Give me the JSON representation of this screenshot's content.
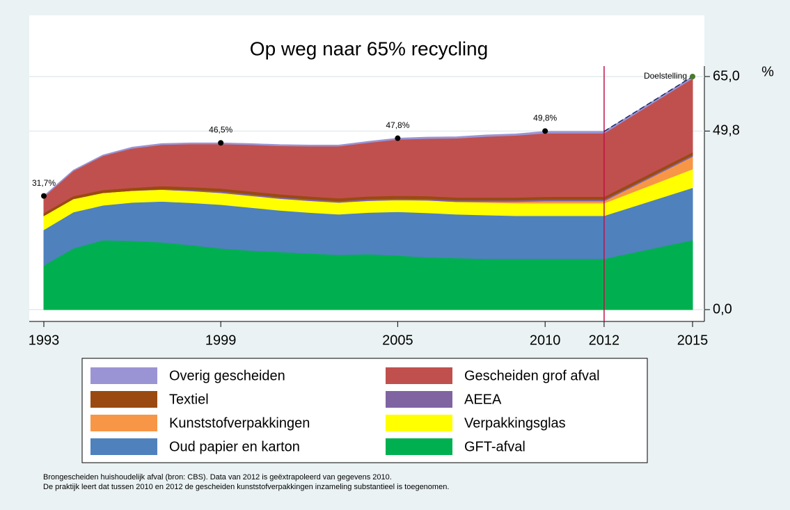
{
  "chart_data": {
    "type": "stacked-area",
    "title": "Op weg naar 65% recycling",
    "y_label": "%",
    "x": [
      1993,
      1994,
      1995,
      1996,
      1997,
      1998,
      1999,
      2000,
      2001,
      2002,
      2003,
      2004,
      2005,
      2006,
      2007,
      2008,
      2009,
      2010,
      2012,
      2015
    ],
    "series": [
      {
        "name": "GFT-afval",
        "color": "#00b050",
        "values": [
          12.4,
          17.1,
          19.4,
          19.2,
          18.8,
          18.0,
          17.1,
          16.5,
          16.1,
          15.7,
          15.3,
          15.5,
          15.1,
          14.6,
          14.4,
          14.2,
          14.2,
          14.2,
          14.2,
          19.4
        ]
      },
      {
        "name": "Oud papier en karton",
        "color": "#4f81bd",
        "values": [
          9.9,
          10.1,
          9.7,
          10.7,
          11.4,
          11.8,
          12.2,
          12.0,
          11.6,
          11.4,
          11.3,
          11.6,
          12.2,
          12.4,
          12.2,
          12.2,
          12.0,
          12.0,
          12.0,
          14.6
        ]
      },
      {
        "name": "Verpakkingsglas",
        "color": "#ffff00",
        "values": [
          3.9,
          3.7,
          3.5,
          3.3,
          3.3,
          3.3,
          3.3,
          3.3,
          3.3,
          3.3,
          3.3,
          3.3,
          3.3,
          3.5,
          3.5,
          3.5,
          3.5,
          3.5,
          3.5,
          5.2
        ]
      },
      {
        "name": "Kunststofverpakkingen",
        "color": "#f79646",
        "values": [
          0,
          0,
          0,
          0,
          0,
          0,
          0,
          0,
          0,
          0,
          0,
          0,
          0,
          0,
          0,
          0.2,
          0.4,
          0.6,
          0.6,
          3.5
        ]
      },
      {
        "name": "AEEA",
        "color": "#8064a2",
        "values": [
          0,
          0,
          0,
          0,
          0.2,
          0.3,
          0.4,
          0.4,
          0.4,
          0.4,
          0.4,
          0.4,
          0.4,
          0.4,
          0.4,
          0.4,
          0.4,
          0.4,
          0.4,
          0.4
        ]
      },
      {
        "name": "Textiel",
        "color": "#9a4a10",
        "values": [
          0.8,
          0.8,
          0.8,
          0.8,
          0.8,
          0.8,
          0.8,
          0.8,
          0.8,
          0.8,
          0.8,
          0.8,
          0.8,
          0.8,
          0.8,
          0.8,
          0.8,
          0.8,
          0.8,
          0.8
        ]
      },
      {
        "name": "Gescheiden grof afval",
        "color": "#c0504d",
        "values": [
          4.5,
          7,
          9.5,
          11,
          11.5,
          12,
          12.4,
          13,
          13.5,
          14,
          14.5,
          15,
          15.7,
          16,
          16.5,
          17,
          17.3,
          17.7,
          17.7,
          20.6
        ]
      },
      {
        "name": "Overig gescheiden",
        "color": "#9b94d4",
        "values": [
          0.2,
          0.2,
          0.2,
          0.3,
          0.3,
          0.3,
          0.3,
          0.3,
          0.3,
          0.3,
          0.3,
          0.3,
          0.3,
          0.4,
          0.4,
          0.4,
          0.4,
          0.5,
          0.5,
          0.5
        ]
      }
    ],
    "annotations": [
      {
        "x": 1993,
        "y": 31.7,
        "label": "31,7%"
      },
      {
        "x": 1999,
        "y": 46.5,
        "label": "46,5%"
      },
      {
        "x": 2005,
        "y": 47.8,
        "label": "47,8%"
      },
      {
        "x": 2010,
        "y": 49.8,
        "label": "49,8%"
      }
    ],
    "target": {
      "x": 2015,
      "y": 65,
      "label": "Doelstelling"
    },
    "marker_line_x": 2012,
    "xlim": [
      1993,
      2015
    ],
    "xticks": [
      1993,
      1999,
      2005,
      2010,
      2012,
      2015
    ],
    "ylim": [
      0,
      65
    ],
    "yticks": [
      {
        "value": 0,
        "label": "0,0"
      },
      {
        "value": 49.8,
        "label": "49,8"
      },
      {
        "value": 65,
        "label": "65,0"
      }
    ],
    "notes": [
      "Brongescheiden huishoudelijk afval (bron: CBS). Data van 2012 is geëxtrapoleerd van gegevens 2010.",
      "De praktijk leert dat tussen 2010 en 2012 de gescheiden kunststofverpakkingen inzameling substantieel is toegenomen."
    ]
  }
}
